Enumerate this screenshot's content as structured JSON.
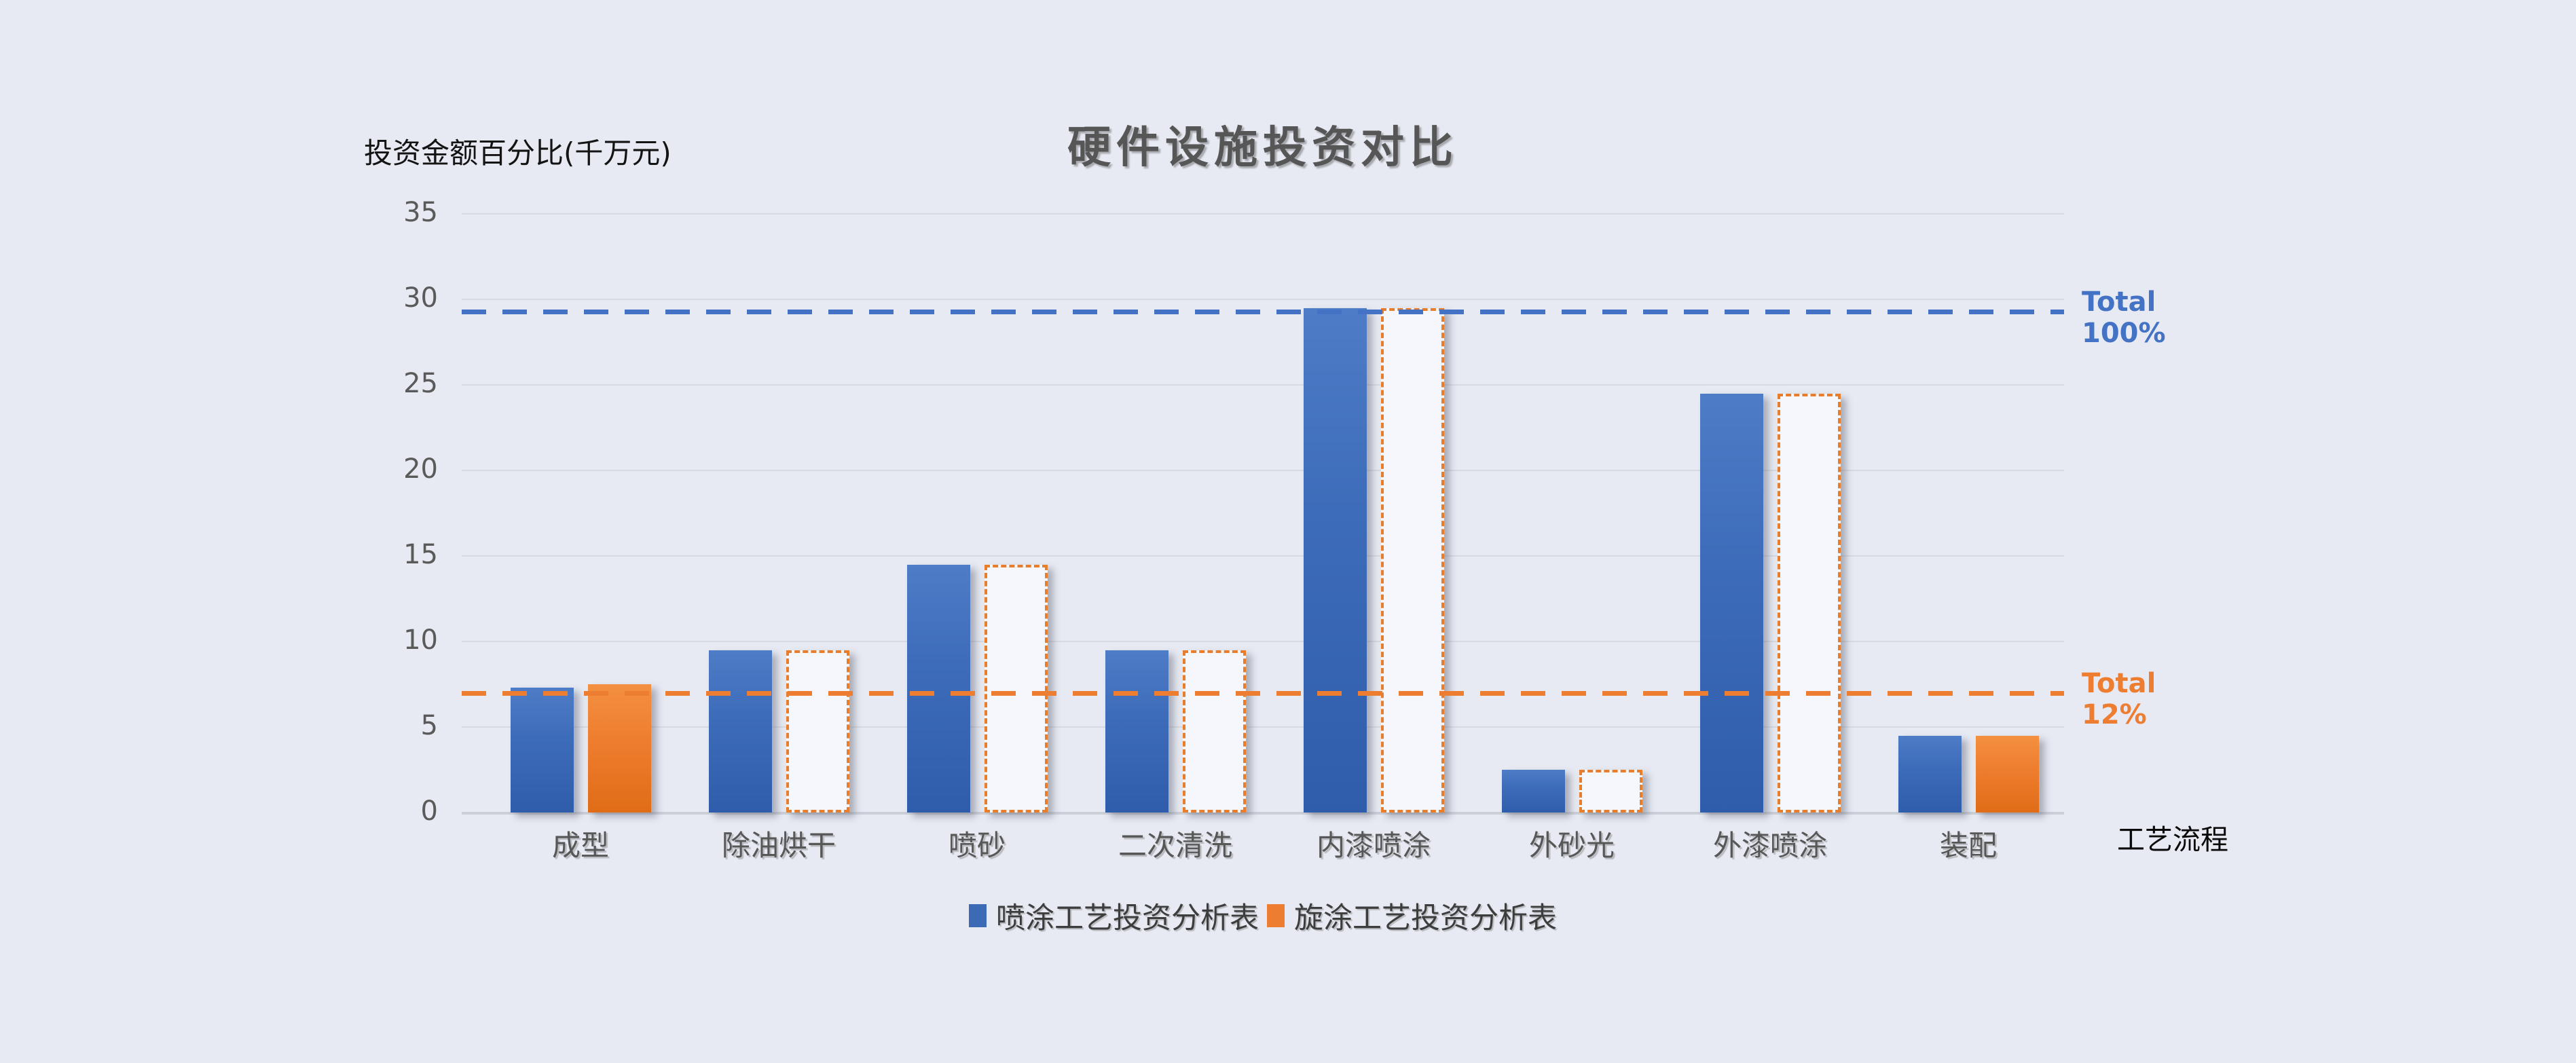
{
  "page": {
    "background_color": "#e7eaf2"
  },
  "chart_data": {
    "type": "bar",
    "title": "硬件设施投资对比",
    "ylabel": "投资金额百分比(千万元)",
    "xlabel": "工艺流程",
    "categories": [
      "成型",
      "除油烘干",
      "喷砂",
      "二次清洗",
      "内漆喷涂",
      "外砂光",
      "外漆喷涂",
      "装配"
    ],
    "series": [
      {
        "name": "喷涂工艺投资分析表",
        "color": "#3c6ab5",
        "style": "solid",
        "values": [
          7.3,
          9.5,
          14.5,
          9.5,
          29.5,
          2.5,
          24.5,
          4.5
        ]
      },
      {
        "name": "旋涂工艺投资分析表",
        "color": "#ED7D31",
        "style": "solid-or-dashed-outline",
        "values": [
          7.5,
          9.5,
          14.5,
          9.5,
          29.5,
          2.5,
          24.5,
          4.5
        ],
        "solid_points": [
          true,
          false,
          false,
          false,
          false,
          false,
          false,
          true
        ]
      }
    ],
    "yticks": [
      0,
      5,
      10,
      15,
      20,
      25,
      30,
      35
    ],
    "ylim": [
      0,
      35
    ],
    "grid": true,
    "legend_position": "bottom",
    "reference_lines": [
      {
        "label": "Total",
        "sublabel": "100%",
        "value": 29.3,
        "color": "#4472C4"
      },
      {
        "label": "Total",
        "sublabel": "12%",
        "value": 7.0,
        "color": "#ED7D31"
      }
    ]
  }
}
